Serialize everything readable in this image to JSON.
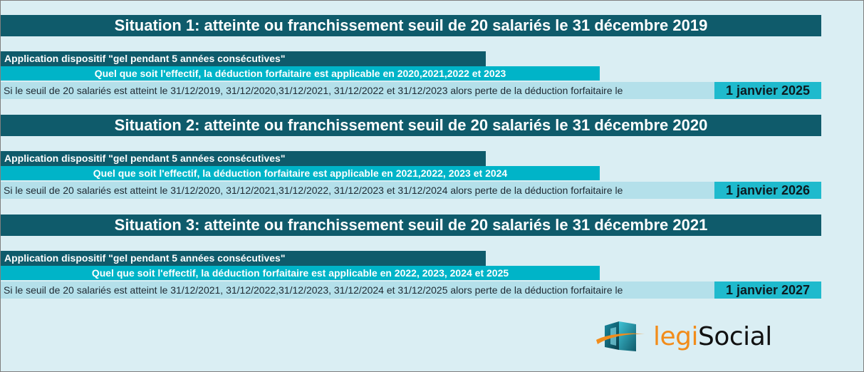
{
  "situations": [
    {
      "title": "Situation 1: atteinte ou franchissement seuil de 20 salariés le 31 décembre 2019",
      "application": "Application dispositif \"gel pendant 5 années consécutives\"",
      "condition": "Quel que soit l'effectif, la déduction forfaitaire est applicable en 2020,2021,2022 et 2023",
      "text": "Si le seuil de 20 salariés est atteint le 31/12/2019, 31/12/2020,31/12/2021, 31/12/2022 et 31/12/2023 alors perte de la déduction forfaitaire le",
      "date": "1 janvier 2025"
    },
    {
      "title": "Situation 2: atteinte ou franchissement seuil de 20 salariés le 31 décembre 2020",
      "application": "Application dispositif \"gel pendant 5 années consécutives\"",
      "condition": "Quel que soit l'effectif, la déduction forfaitaire est applicable en 2021,2022, 2023 et 2024",
      "text": "Si le seuil de 20 salariés est atteint le 31/12/2020, 31/12/2021,31/12/2022, 31/12/2023 et 31/12/2024 alors perte de la déduction forfaitaire le",
      "date": "1 janvier 2026"
    },
    {
      "title": "Situation 3: atteinte ou franchissement seuil de 20 salariés le 31 décembre 2021",
      "application": "Application dispositif \"gel pendant 5 années consécutives\"",
      "condition": "Quel que soit l'effectif, la déduction forfaitaire est applicable en 2022, 2023, 2024 et 2025",
      "text": "Si le seuil de 20 salariés est atteint le 31/12/2021, 31/12/2022,31/12/2023, 31/12/2024 et 31/12/2025 alors perte de la déduction forfaitaire le",
      "date": "1 janvier 2027"
    }
  ],
  "logo": {
    "text_part1": "legi",
    "text_part2": "Social",
    "icon": "legisocial-logo-mark"
  },
  "colors": {
    "background": "#daeef3",
    "dark_teal": "#0f5b6b",
    "bright_teal": "#00b4c8",
    "light_row": "#b4e0ea",
    "date_box": "#1fbacd",
    "logo_orange": "#f28c1a"
  }
}
